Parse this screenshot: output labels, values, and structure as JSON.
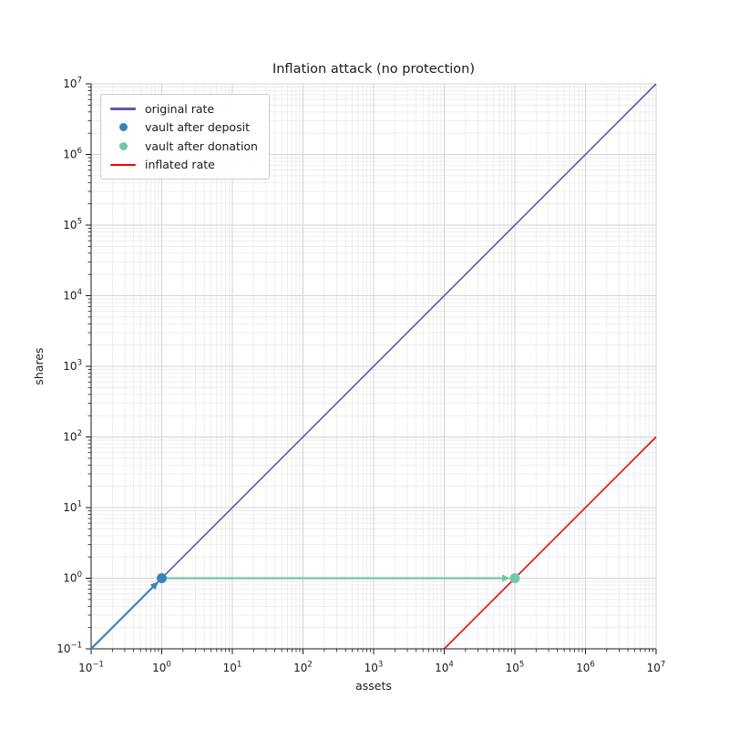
{
  "chart_data": {
    "type": "line",
    "title": "Inflation attack (no protection)",
    "xlabel": "assets",
    "ylabel": "shares",
    "xscale": "log",
    "yscale": "log",
    "xlim": [
      0.1,
      10000000.0
    ],
    "ylim": [
      0.1,
      10000000.0
    ],
    "x_tick_exponents": [
      -1,
      0,
      1,
      2,
      3,
      4,
      5,
      6,
      7
    ],
    "y_tick_exponents": [
      -1,
      0,
      1,
      2,
      3,
      4,
      5,
      6,
      7
    ],
    "grid": "both",
    "legend_position": "upper left",
    "series": [
      {
        "name": "original rate",
        "kind": "line",
        "color": "#6257B0",
        "x": [
          0.1,
          10000000.0
        ],
        "y": [
          0.1,
          10000000.0
        ],
        "description": "shares = assets"
      },
      {
        "name": "vault after deposit",
        "kind": "scatter",
        "color": "#3685BB",
        "points": [
          [
            1,
            1
          ]
        ]
      },
      {
        "name": "vault after donation",
        "kind": "scatter",
        "color": "#6FC8A6",
        "points": [
          [
            100000.0,
            1
          ]
        ]
      },
      {
        "name": "inflated rate",
        "kind": "line",
        "color": "#FF0000",
        "x": [
          10000.0,
          10000000.0
        ],
        "y": [
          0.1,
          100
        ],
        "description": "shares = assets / 1e5"
      }
    ],
    "annotations": [
      {
        "type": "arrow",
        "from": [
          0.1,
          0.1
        ],
        "to": [
          1,
          1
        ],
        "color": "#3685BB"
      },
      {
        "type": "arrow",
        "from": [
          1,
          1
        ],
        "to": [
          100000.0,
          1
        ],
        "color": "#6FC8A6"
      }
    ],
    "colors": {
      "grid_major": "#d4d4d4",
      "grid_minor": "#eaeaea",
      "spine": "#1a1a1a",
      "tick": "#1a1a1a",
      "tick_label": "#1a1a1a"
    }
  }
}
